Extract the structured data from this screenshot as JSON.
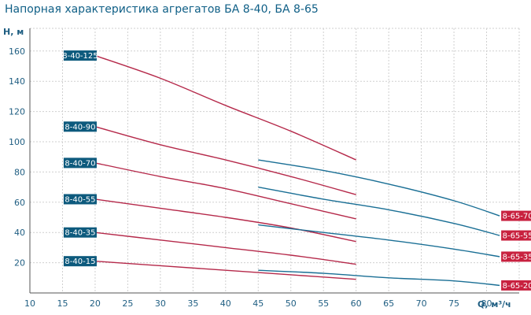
{
  "chart_data": {
    "type": "line",
    "title": "Напорная характеристика агрегатов БА 8-40, БА 8-65",
    "xlabel": "Q, м³/ч",
    "ylabel": "H, м",
    "xlim": [
      10,
      85
    ],
    "ylim": [
      0,
      175
    ],
    "x_ticks": [
      10,
      15,
      20,
      25,
      30,
      35,
      40,
      45,
      50,
      55,
      60,
      65,
      70,
      75,
      80
    ],
    "y_ticks": [
      20,
      40,
      60,
      80,
      100,
      120,
      140,
      160
    ],
    "grid": true,
    "colors": {
      "series_8_40": "#b5294a",
      "series_8_65": "#1a6f95",
      "label_8_40_bg": "#0d5a7d",
      "label_8_65_bg": "#c8213f",
      "grid": "#cfcfcf",
      "text": "#1f5e82"
    },
    "series": [
      {
        "name": "8-40-125",
        "group": "8-40",
        "x": [
          20,
          30,
          40,
          50,
          60
        ],
        "y": [
          157,
          142,
          124,
          107,
          88
        ]
      },
      {
        "name": "8-40-90",
        "group": "8-40",
        "x": [
          20,
          30,
          40,
          50,
          60
        ],
        "y": [
          110,
          98,
          88,
          77,
          65
        ]
      },
      {
        "name": "8-40-70",
        "group": "8-40",
        "x": [
          20,
          30,
          40,
          50,
          60
        ],
        "y": [
          86,
          77,
          69,
          59,
          49
        ]
      },
      {
        "name": "8-40-55",
        "group": "8-40",
        "x": [
          20,
          30,
          40,
          50,
          60
        ],
        "y": [
          62,
          56,
          50,
          43,
          34
        ]
      },
      {
        "name": "8-40-35",
        "group": "8-40",
        "x": [
          20,
          30,
          40,
          50,
          60
        ],
        "y": [
          40,
          35,
          30,
          25,
          19
        ]
      },
      {
        "name": "8-40-15",
        "group": "8-40",
        "x": [
          20,
          30,
          40,
          50,
          60
        ],
        "y": [
          21,
          18,
          15,
          12,
          9
        ]
      },
      {
        "name": "8-65-70",
        "group": "8-65",
        "x": [
          45,
          55,
          65,
          75,
          82
        ],
        "y": [
          88,
          81,
          72,
          61,
          51
        ]
      },
      {
        "name": "8-65-55",
        "group": "8-65",
        "x": [
          45,
          55,
          65,
          75,
          82
        ],
        "y": [
          70,
          62,
          55,
          46,
          38
        ]
      },
      {
        "name": "8-65-35",
        "group": "8-65",
        "x": [
          45,
          55,
          65,
          75,
          82
        ],
        "y": [
          45,
          40,
          35,
          29,
          24
        ]
      },
      {
        "name": "8-65-20",
        "group": "8-65",
        "x": [
          45,
          55,
          65,
          75,
          82
        ],
        "y": [
          15,
          13,
          10,
          8,
          5
        ]
      }
    ]
  }
}
